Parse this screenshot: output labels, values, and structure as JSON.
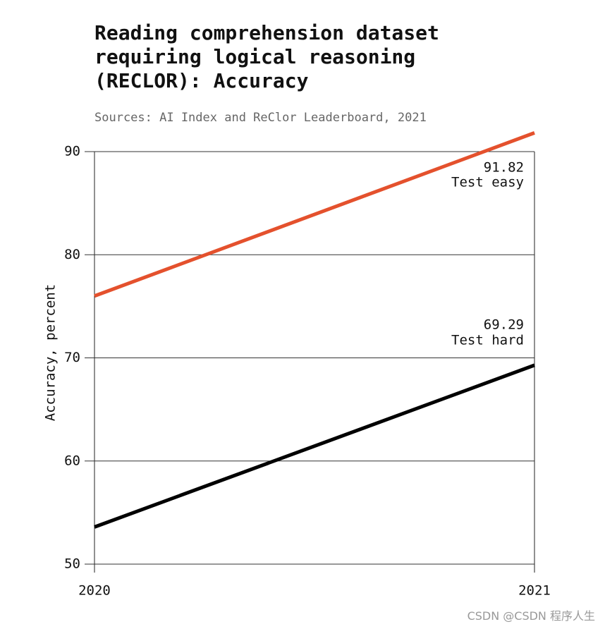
{
  "chart_data": {
    "type": "line",
    "title": "Reading comprehension dataset requiring logical reasoning (RECLOR): Accuracy",
    "subtitle": "Sources: AI Index and ReClor Leaderboard, 2021",
    "y_label": "Accuracy, percent",
    "x": [
      2020,
      2021
    ],
    "xlim": [
      2020,
      2021
    ],
    "xticks": [
      2020,
      2021
    ],
    "ylim": [
      50,
      90
    ],
    "yticks": [
      50,
      60,
      70,
      80,
      90
    ],
    "grid": true,
    "series": [
      {
        "name": "Test easy",
        "color": "#e4512d",
        "values": [
          76.0,
          91.82
        ]
      },
      {
        "name": "Test hard",
        "color": "#000000",
        "values": [
          53.6,
          69.29
        ]
      }
    ]
  },
  "watermark": "CSDN @CSDN 程序人生"
}
